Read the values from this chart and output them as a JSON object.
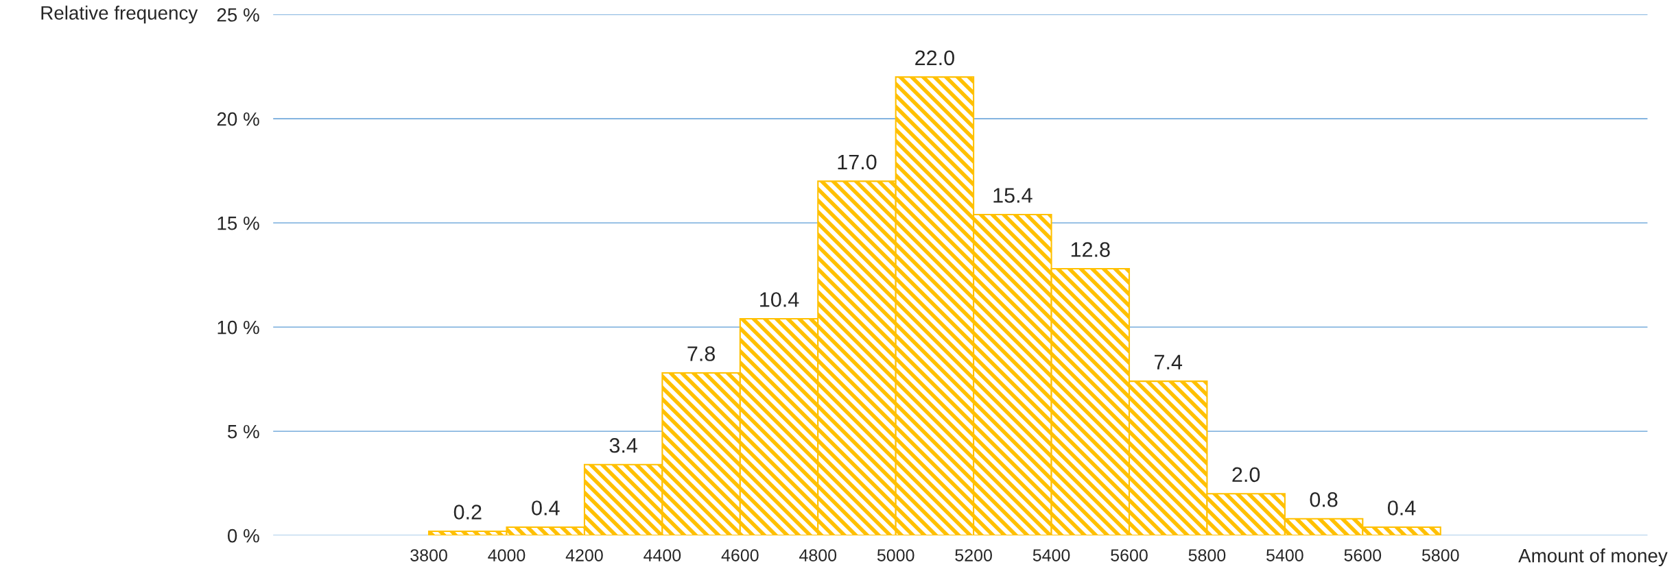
{
  "chart_data": {
    "type": "bar",
    "ylabel": "Relative frequency",
    "xlabel": "Amount of money",
    "categories": [
      "3800",
      "4000",
      "4200",
      "4400",
      "4600",
      "4800",
      "5000",
      "5200",
      "5400",
      "5600",
      "5800",
      "5400",
      "5600",
      "5800"
    ],
    "values": [
      0.2,
      0.4,
      3.4,
      7.8,
      10.4,
      17.0,
      22.0,
      15.4,
      12.8,
      7.4,
      2.0,
      0.8,
      0.4,
      null
    ],
    "value_labels": [
      "0.2",
      "0.4",
      "3.4",
      "7.8",
      "10.4",
      "17.0",
      "22.0",
      "15.4",
      "12.8",
      "7.4",
      "2.0",
      "0.8",
      "0.4",
      null
    ],
    "color": "#ffc000",
    "ylim": [
      0,
      25
    ],
    "yticks": [
      {
        "value": 0,
        "label": "0 %"
      },
      {
        "value": 5,
        "label": "5 %"
      },
      {
        "value": 10,
        "label": "10 %"
      },
      {
        "value": 15,
        "label": "15 %"
      },
      {
        "value": 20,
        "label": "20 %"
      },
      {
        "value": 25,
        "label": "25 %"
      }
    ],
    "grid": "y"
  }
}
